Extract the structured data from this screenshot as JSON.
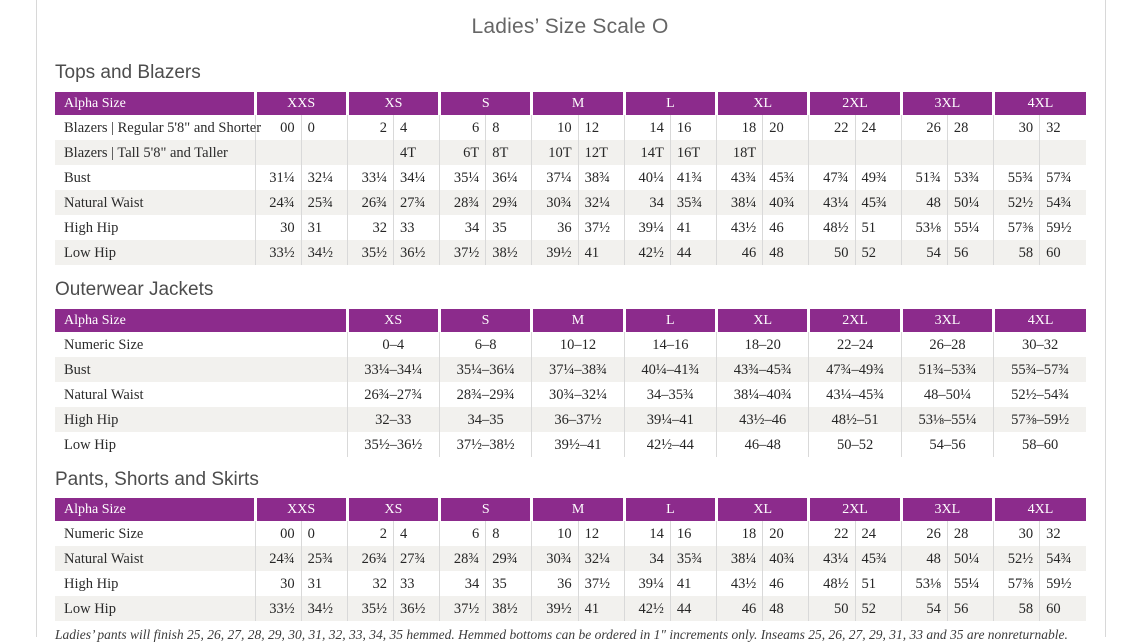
{
  "page": {
    "title": "Ladies’ Size Scale O",
    "footnote": "Ladies’ pants will finish 25, 26, 27, 28, 29, 30, 31, 32, 33, 34, 35 hemmed. Hemmed bottoms can be ordered in 1″ increments only. Inseams 25, 26, 27, 29, 31, 33 and 35 are nonreturnable."
  },
  "colors": {
    "header_bg": "#8c2b8c",
    "header_text": "#ffffff",
    "row_alt": "#f2f1ee",
    "grid_line": "#d9d9d9"
  },
  "tables": [
    {
      "heading": "Tops and Blazers",
      "header_label": "Alpha Size",
      "paired": true,
      "sizes": [
        "XXS",
        "XS",
        "S",
        "M",
        "L",
        "XL",
        "2XL",
        "3XL",
        "4XL"
      ],
      "rows": [
        {
          "label": "Blazers | Regular 5'8\" and Shorter",
          "values": [
            "00",
            "0",
            "2",
            "4",
            "6",
            "8",
            "10",
            "12",
            "14",
            "16",
            "18",
            "20",
            "22",
            "24",
            "26",
            "28",
            "30",
            "32"
          ]
        },
        {
          "label": "Blazers | Tall 5'8\" and Taller",
          "values": [
            "",
            "",
            "",
            "4T",
            "6T",
            "8T",
            "10T",
            "12T",
            "14T",
            "16T",
            "18T",
            "",
            "",
            "",
            "",
            "",
            "",
            ""
          ]
        },
        {
          "label": "Bust",
          "values": [
            "31¼",
            "32¼",
            "33¼",
            "34¼",
            "35¼",
            "36¼",
            "37¼",
            "38¾",
            "40¼",
            "41¾",
            "43¾",
            "45¾",
            "47¾",
            "49¾",
            "51¾",
            "53¾",
            "55¾",
            "57¾"
          ]
        },
        {
          "label": "Natural Waist",
          "values": [
            "24¾",
            "25¾",
            "26¾",
            "27¾",
            "28¾",
            "29¾",
            "30¾",
            "32¼",
            "34",
            "35¾",
            "38¼",
            "40¾",
            "43¼",
            "45¾",
            "48",
            "50¼",
            "52½",
            "54¾"
          ]
        },
        {
          "label": "High Hip",
          "values": [
            "30",
            "31",
            "32",
            "33",
            "34",
            "35",
            "36",
            "37½",
            "39¼",
            "41",
            "43½",
            "46",
            "48½",
            "51",
            "53⅛",
            "55¼",
            "57⅜",
            "59½"
          ]
        },
        {
          "label": "Low Hip",
          "values": [
            "33½",
            "34½",
            "35½",
            "36½",
            "37½",
            "38½",
            "39½",
            "41",
            "42½",
            "44",
            "46",
            "48",
            "50",
            "52",
            "54",
            "56",
            "58",
            "60"
          ]
        }
      ]
    },
    {
      "heading": "Outerwear Jackets",
      "header_label": "Alpha Size",
      "paired": false,
      "sizes": [
        "XS",
        "S",
        "M",
        "L",
        "XL",
        "2XL",
        "3XL",
        "4XL"
      ],
      "rows": [
        {
          "label": "Numeric Size",
          "values": [
            "0–4",
            "6–8",
            "10–12",
            "14–16",
            "18–20",
            "22–24",
            "26–28",
            "30–32"
          ]
        },
        {
          "label": "Bust",
          "values": [
            "33¼–34¼",
            "35¼–36¼",
            "37¼–38¾",
            "40¼–41¾",
            "43¾–45¾",
            "47¾–49¾",
            "51¾–53¾",
            "55¾–57¾"
          ]
        },
        {
          "label": "Natural Waist",
          "values": [
            "26¾–27¾",
            "28¾–29¾",
            "30¾–32¼",
            "34–35¾",
            "38¼–40¾",
            "43¼–45¾",
            "48–50¼",
            "52½–54¾"
          ]
        },
        {
          "label": "High Hip",
          "values": [
            "32–33",
            "34–35",
            "36–37½",
            "39¼–41",
            "43½–46",
            "48½–51",
            "53⅛–55¼",
            "57⅜–59½"
          ]
        },
        {
          "label": "Low Hip",
          "values": [
            "35½–36½",
            "37½–38½",
            "39½–41",
            "42½–44",
            "46–48",
            "50–52",
            "54–56",
            "58–60"
          ]
        }
      ]
    },
    {
      "heading": "Pants, Shorts and Skirts",
      "header_label": "Alpha Size",
      "paired": true,
      "sizes": [
        "XXS",
        "XS",
        "S",
        "M",
        "L",
        "XL",
        "2XL",
        "3XL",
        "4XL"
      ],
      "rows": [
        {
          "label": "Numeric Size",
          "values": [
            "00",
            "0",
            "2",
            "4",
            "6",
            "8",
            "10",
            "12",
            "14",
            "16",
            "18",
            "20",
            "22",
            "24",
            "26",
            "28",
            "30",
            "32"
          ]
        },
        {
          "label": "Natural Waist",
          "values": [
            "24¾",
            "25¾",
            "26¾",
            "27¾",
            "28¾",
            "29¾",
            "30¾",
            "32¼",
            "34",
            "35¾",
            "38¼",
            "40¾",
            "43¼",
            "45¾",
            "48",
            "50¼",
            "52½",
            "54¾"
          ]
        },
        {
          "label": "High Hip",
          "values": [
            "30",
            "31",
            "32",
            "33",
            "34",
            "35",
            "36",
            "37½",
            "39¼",
            "41",
            "43½",
            "46",
            "48½",
            "51",
            "53⅛",
            "55¼",
            "57⅜",
            "59½"
          ]
        },
        {
          "label": "Low Hip",
          "values": [
            "33½",
            "34½",
            "35½",
            "36½",
            "37½",
            "38½",
            "39½",
            "41",
            "42½",
            "44",
            "46",
            "48",
            "50",
            "52",
            "54",
            "56",
            "58",
            "60"
          ]
        }
      ]
    }
  ]
}
